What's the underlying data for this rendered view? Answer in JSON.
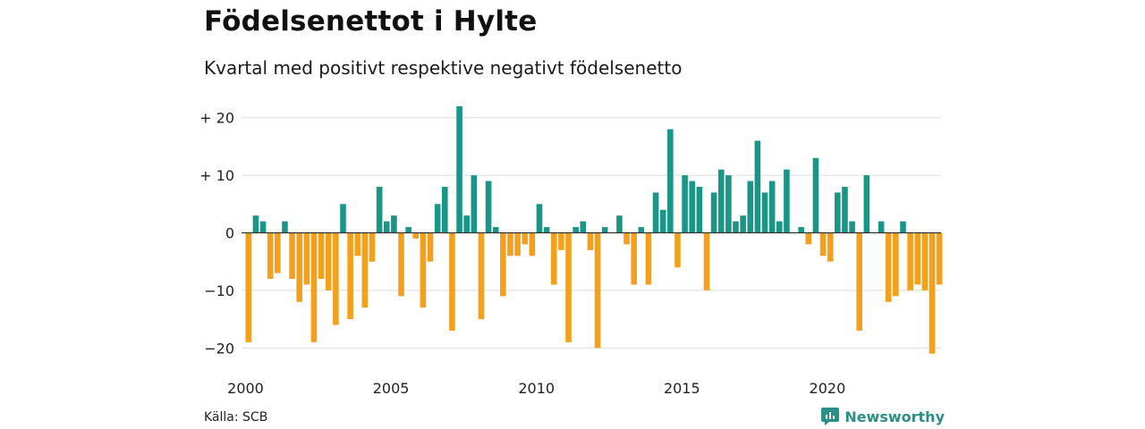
{
  "title": "Födelsenettot i Hylte",
  "subtitle": "Kvartal med positivt respektive negativt födelsenetto",
  "source": "Källa: SCB",
  "brand": "Newsworthy",
  "colors": {
    "positive": "#1a9688",
    "negative": "#f5a01d",
    "grid": "#dddddd",
    "brand": "#2a8f86"
  },
  "chart_data": {
    "type": "bar",
    "x_start": 2000,
    "x_step": 0.25,
    "values": [
      -19,
      3,
      2,
      -8,
      -7,
      2,
      -8,
      -12,
      -9,
      -19,
      -8,
      -10,
      -16,
      5,
      -15,
      -4,
      -13,
      -5,
      8,
      2,
      3,
      -11,
      1,
      -1,
      -13,
      -5,
      5,
      8,
      -17,
      22,
      3,
      10,
      -15,
      9,
      1,
      -11,
      -4,
      -4,
      -2,
      -4,
      5,
      1,
      -9,
      -3,
      -19,
      1,
      2,
      -3,
      -20,
      1,
      0,
      3,
      -2,
      -9,
      1,
      -9,
      7,
      4,
      18,
      -6,
      10,
      9,
      8,
      -10,
      7,
      11,
      10,
      2,
      3,
      9,
      16,
      7,
      9,
      2,
      11,
      0,
      1,
      -2,
      13,
      -4,
      -5,
      7,
      8,
      2,
      -17,
      10,
      0,
      2,
      -12,
      -11,
      2,
      -10,
      -9,
      -10,
      -21,
      -9
    ],
    "ylim": [
      -22,
      22
    ],
    "y_ticks": [
      20,
      10,
      0,
      -10,
      -20
    ],
    "y_tick_labels": [
      "+ 20",
      "+ 10",
      "0",
      "−10",
      "−20"
    ],
    "x_ticks": [
      2000,
      2005,
      2010,
      2015,
      2020
    ],
    "x_tick_labels": [
      "2000",
      "2005",
      "2010",
      "2015",
      "2020"
    ],
    "grid": true,
    "legend": "none"
  }
}
